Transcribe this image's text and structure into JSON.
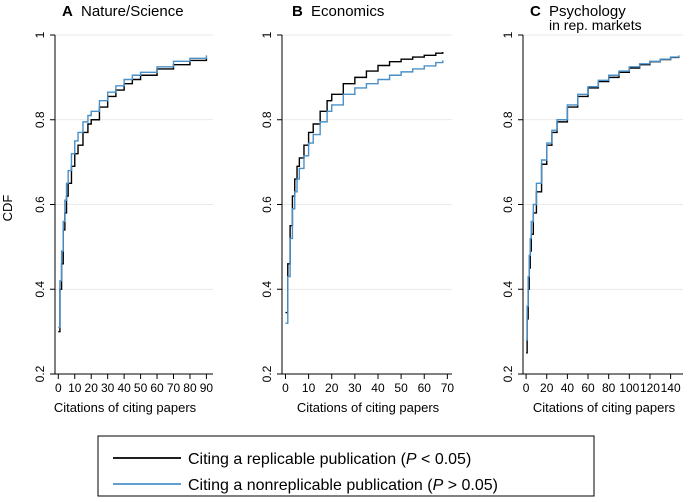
{
  "figure": {
    "y_axis_label": "CDF",
    "legend": [
      {
        "label": "Citing a replicable publication (",
        "italic": "P",
        "rest": " < 0.05)",
        "color": "#000000"
      },
      {
        "label": "Citing a nonreplicable publication (",
        "italic": "P",
        "rest": " > 0.05)",
        "color": "#4a90c8"
      }
    ]
  },
  "chart_data": [
    {
      "type": "line",
      "panel_letter": "A",
      "title": "Nature/Science",
      "xlabel": "Citations of citing papers",
      "ylabel": "CDF",
      "xlim": [
        -2,
        94
      ],
      "ylim": [
        0.2,
        1.0
      ],
      "xticks": [
        0,
        10,
        20,
        30,
        40,
        50,
        60,
        70,
        80,
        90
      ],
      "yticks": [
        0.2,
        0.4,
        0.6,
        0.8,
        1.0
      ],
      "ytick_labels": [
        "0.2",
        "0.4",
        "0.6",
        "0.8",
        "1"
      ],
      "series": [
        {
          "name": "Citing a replicable publication (P < 0.05)",
          "color": "#000000",
          "x": [
            0,
            1,
            2,
            3,
            4,
            5,
            6,
            8,
            10,
            12,
            15,
            18,
            20,
            25,
            30,
            35,
            40,
            45,
            50,
            60,
            70,
            80,
            90
          ],
          "y": [
            0.3,
            0.4,
            0.46,
            0.54,
            0.58,
            0.62,
            0.65,
            0.69,
            0.72,
            0.74,
            0.77,
            0.79,
            0.8,
            0.83,
            0.855,
            0.87,
            0.885,
            0.895,
            0.905,
            0.92,
            0.93,
            0.94,
            0.945
          ]
        },
        {
          "name": "Citing a nonreplicable publication (P > 0.05)",
          "color": "#4a90c8",
          "x": [
            0,
            1,
            2,
            3,
            4,
            5,
            6,
            8,
            10,
            12,
            15,
            18,
            20,
            25,
            30,
            35,
            40,
            45,
            50,
            60,
            70,
            80,
            90
          ],
          "y": [
            0.31,
            0.42,
            0.49,
            0.56,
            0.61,
            0.65,
            0.68,
            0.72,
            0.75,
            0.77,
            0.795,
            0.81,
            0.82,
            0.845,
            0.865,
            0.88,
            0.895,
            0.905,
            0.912,
            0.925,
            0.938,
            0.945,
            0.952
          ]
        }
      ]
    },
    {
      "type": "line",
      "panel_letter": "B",
      "title": "Economics",
      "xlabel": "Citations of citing papers",
      "ylabel": "",
      "xlim": [
        -1.5,
        72
      ],
      "ylim": [
        0.2,
        1.0
      ],
      "xticks": [
        0,
        10,
        20,
        30,
        40,
        50,
        60,
        70
      ],
      "yticks": [
        0.2,
        0.4,
        0.6,
        0.8,
        1.0
      ],
      "ytick_labels": [
        "0.2",
        "0.4",
        "0.6",
        "0.8",
        "1"
      ],
      "series": [
        {
          "name": "Citing a replicable publication (P < 0.05)",
          "color": "#000000",
          "x": [
            0,
            1,
            2,
            3,
            4,
            5,
            6,
            8,
            10,
            12,
            15,
            18,
            20,
            25,
            30,
            35,
            40,
            45,
            50,
            55,
            60,
            65,
            68
          ],
          "y": [
            0.345,
            0.46,
            0.55,
            0.62,
            0.66,
            0.69,
            0.71,
            0.74,
            0.77,
            0.79,
            0.82,
            0.845,
            0.86,
            0.885,
            0.9,
            0.915,
            0.928,
            0.937,
            0.943,
            0.948,
            0.952,
            0.957,
            0.96
          ]
        },
        {
          "name": "Citing a nonreplicable publication (P > 0.05)",
          "color": "#4a90c8",
          "x": [
            0,
            1,
            2,
            3,
            4,
            5,
            6,
            8,
            10,
            12,
            15,
            18,
            20,
            25,
            30,
            35,
            40,
            45,
            50,
            55,
            60,
            65,
            68
          ],
          "y": [
            0.32,
            0.43,
            0.52,
            0.59,
            0.63,
            0.66,
            0.685,
            0.715,
            0.745,
            0.765,
            0.795,
            0.82,
            0.835,
            0.86,
            0.875,
            0.885,
            0.895,
            0.905,
            0.913,
            0.92,
            0.927,
            0.935,
            0.94
          ]
        }
      ]
    },
    {
      "type": "line",
      "panel_letter": "C",
      "title": "Psychology",
      "title_line2": "in rep. markets",
      "xlabel": "Citations of citing papers",
      "ylabel": "",
      "xlim": [
        -3,
        152
      ],
      "ylim": [
        0.2,
        1.0
      ],
      "xticks": [
        0,
        20,
        40,
        60,
        80,
        100,
        120,
        140
      ],
      "yticks": [
        0.2,
        0.4,
        0.6,
        0.8,
        1.0
      ],
      "ytick_labels": [
        "0.2",
        "0.4",
        "0.6",
        "0.8",
        "1"
      ],
      "series": [
        {
          "name": "Citing a replicable publication (P < 0.05)",
          "color": "#000000",
          "x": [
            0,
            1,
            2,
            3,
            4,
            5,
            7,
            10,
            15,
            20,
            25,
            30,
            40,
            50,
            60,
            70,
            80,
            90,
            100,
            110,
            120,
            130,
            140,
            148
          ],
          "y": [
            0.25,
            0.33,
            0.4,
            0.45,
            0.49,
            0.53,
            0.58,
            0.63,
            0.695,
            0.74,
            0.77,
            0.795,
            0.83,
            0.855,
            0.875,
            0.89,
            0.9,
            0.912,
            0.922,
            0.93,
            0.937,
            0.942,
            0.947,
            0.95
          ]
        },
        {
          "name": "Citing a nonreplicable publication (P > 0.05)",
          "color": "#4a90c8",
          "x": [
            0,
            1,
            2,
            3,
            4,
            5,
            7,
            10,
            15,
            20,
            25,
            30,
            40,
            50,
            60,
            70,
            80,
            90,
            100,
            110,
            120,
            130,
            140,
            148
          ],
          "y": [
            0.28,
            0.36,
            0.43,
            0.48,
            0.52,
            0.56,
            0.6,
            0.65,
            0.705,
            0.745,
            0.775,
            0.8,
            0.835,
            0.86,
            0.878,
            0.893,
            0.905,
            0.915,
            0.925,
            0.932,
            0.938,
            0.943,
            0.948,
            0.952
          ]
        }
      ]
    }
  ]
}
